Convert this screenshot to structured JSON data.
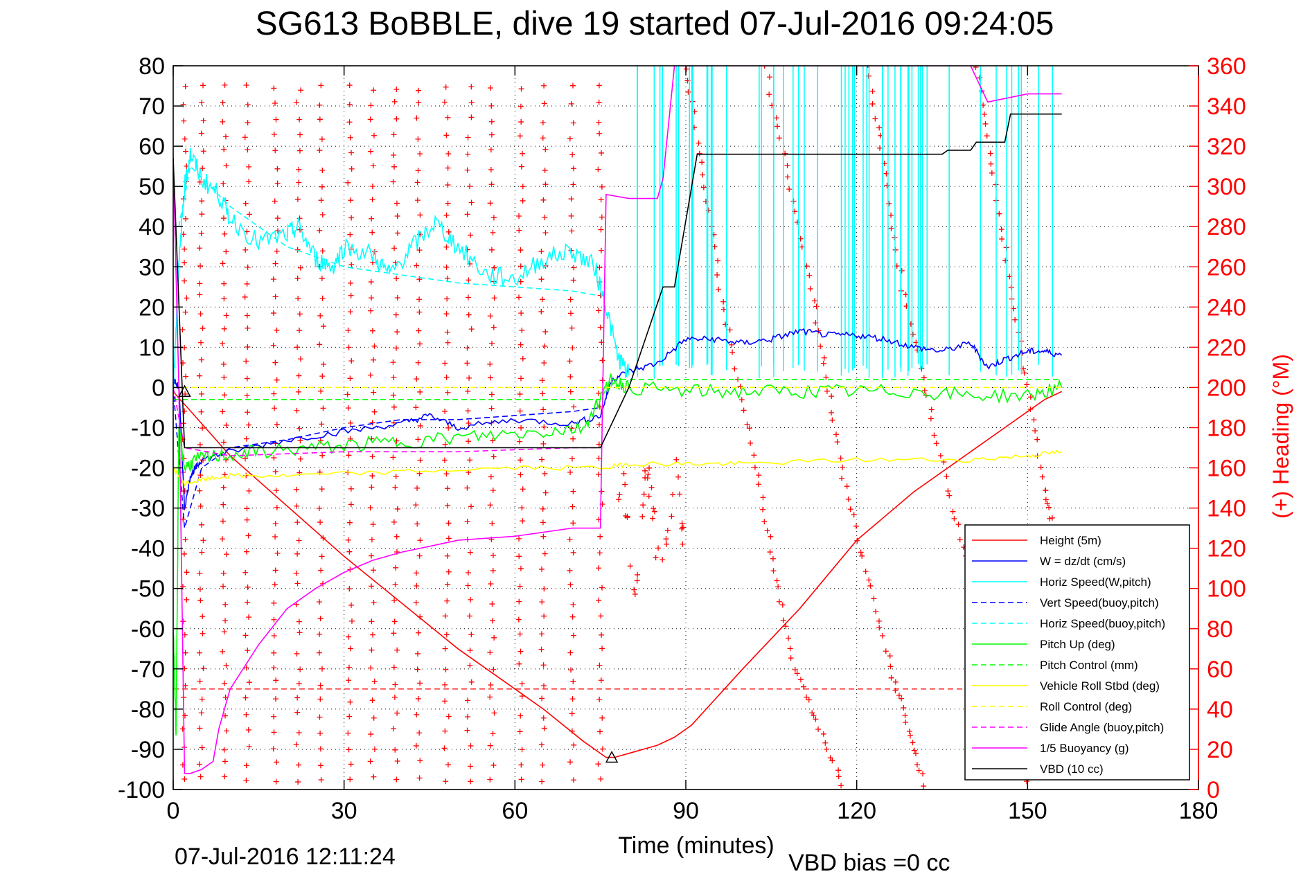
{
  "chart_data": {
    "type": "line",
    "title": "SG613 BoBBLE, dive 19 started 07-Jul-2016 09:24:05",
    "xlabel": "Time (minutes)",
    "ylabel_right": "(+) Heading (°M)",
    "footer_left": "07-Jul-2016 12:11:24",
    "footer_right": "VBD bias =0 cc",
    "xlim": [
      0,
      180
    ],
    "ylim": [
      -100,
      80
    ],
    "y2lim": [
      0,
      360
    ],
    "xticks": [
      "0",
      "30",
      "60",
      "90",
      "120",
      "150",
      "180"
    ],
    "yticks": [
      "80",
      "70",
      "60",
      "50",
      "40",
      "30",
      "20",
      "10",
      "0",
      "-10",
      "-20",
      "-30",
      "-40",
      "-50",
      "-60",
      "-70",
      "-80",
      "-90",
      "-100"
    ],
    "y2ticks": [
      "360",
      "340",
      "320",
      "300",
      "280",
      "260",
      "240",
      "220",
      "200",
      "180",
      "160",
      "140",
      "120",
      "100",
      "80",
      "60",
      "40",
      "20",
      "0"
    ],
    "grid": true,
    "legend_position": "lower-right",
    "colors": {
      "red": "#ff0000",
      "blue": "#0000ff",
      "cyan": "#00ffff",
      "green": "#00ff00",
      "yellow": "#ffff00",
      "magenta": "#ff00ff",
      "black": "#000000"
    },
    "series": [
      {
        "name": "Height (5m)",
        "color": "#ff0000",
        "dash": "solid",
        "x": [
          0,
          1.2,
          2.5,
          10,
          30,
          50,
          65,
          72,
          76,
          77.5,
          80,
          85,
          88,
          91,
          100,
          110,
          120,
          130,
          140,
          146,
          150,
          153,
          156
        ],
        "y": [
          -1,
          -3,
          -5,
          -17,
          -42,
          -65,
          -80,
          -88,
          -92,
          -92,
          -91,
          -89,
          -87,
          -84,
          -70,
          -55,
          -38,
          -26,
          -16,
          -10,
          -6,
          -3,
          -1
        ]
      },
      {
        "name": "W = dz/dt (cm/s)",
        "color": "#0000ff",
        "dash": "solid",
        "x": [
          0,
          1,
          2,
          3,
          4,
          5,
          10,
          20,
          30,
          40,
          45,
          50,
          60,
          70,
          75,
          77,
          80,
          85,
          90,
          95,
          100,
          105,
          110,
          115,
          120,
          125,
          130,
          135,
          140,
          143,
          146,
          150,
          153,
          156
        ],
        "y": [
          2,
          0,
          -30,
          -22,
          -20,
          -18,
          -16,
          -13,
          -11,
          -9,
          -7,
          -10,
          -8,
          -9,
          -7,
          2,
          4,
          6,
          12,
          12,
          11,
          12,
          14,
          13,
          13,
          12,
          10,
          9,
          11,
          5,
          7,
          9,
          9,
          8
        ]
      },
      {
        "name": "Horiz Speed(W,pitch)",
        "color": "#00ffff",
        "dash": "solid",
        "x": [
          0,
          1,
          2,
          3,
          5,
          8,
          10,
          15,
          20,
          22,
          25,
          28,
          30,
          35,
          38,
          42,
          46,
          50,
          55,
          60,
          65,
          70,
          74,
          76,
          78,
          80
        ],
        "y": [
          0,
          30,
          50,
          58,
          52,
          48,
          42,
          36,
          38,
          40,
          32,
          30,
          35,
          33,
          28,
          35,
          41,
          35,
          28,
          27,
          32,
          34,
          30,
          20,
          8,
          3
        ]
      },
      {
        "name": "Vert Speed(buoy,pitch)",
        "color": "#0000ff",
        "dash": "dashed",
        "x": [
          0,
          2,
          5,
          10,
          20,
          30,
          40,
          50,
          60,
          70,
          75
        ],
        "y": [
          0,
          -35,
          -20,
          -15,
          -13,
          -10,
          -8,
          -8,
          -7,
          -6,
          -5
        ]
      },
      {
        "name": "Horiz Speed(buoy,pitch)",
        "color": "#00ffff",
        "dash": "dashed",
        "x": [
          1,
          3,
          10,
          20,
          30,
          40,
          50,
          60,
          70,
          74
        ],
        "y": [
          40,
          55,
          45,
          35,
          30,
          28,
          26,
          25,
          24,
          23
        ]
      },
      {
        "name": "Pitch Up (deg)",
        "color": "#00ff00",
        "dash": "solid",
        "x": [
          0,
          0.5,
          1,
          2,
          4,
          8,
          15,
          25,
          35,
          45,
          55,
          65,
          72,
          76,
          77,
          80,
          90,
          100,
          110,
          120,
          130,
          140,
          150,
          156
        ],
        "y": [
          -60,
          -85,
          -10,
          -20,
          -18,
          -17,
          -16,
          -15,
          -14,
          -13,
          -12,
          -11,
          -10,
          0,
          2,
          0,
          -1,
          -1,
          -1,
          -1,
          -1,
          -2,
          -2,
          0
        ]
      },
      {
        "name": "Pitch Control (mm)",
        "color": "#00ff00",
        "dash": "dashed",
        "x": [
          0,
          2,
          75,
          77,
          156
        ],
        "y": [
          -3,
          -3,
          -3,
          2,
          2
        ]
      },
      {
        "name": "Vehicle Roll Stbd (deg)",
        "color": "#ffff00",
        "dash": "solid",
        "x": [
          0,
          2,
          5,
          10,
          20,
          40,
          60,
          76,
          80,
          90,
          100,
          120,
          140,
          150,
          156
        ],
        "y": [
          -20,
          -24,
          -23,
          -22,
          -22,
          -21,
          -20,
          -20,
          -19,
          -19,
          -19,
          -18,
          -18,
          -17,
          -16
        ]
      },
      {
        "name": "Roll Control (deg)",
        "color": "#ffff00",
        "dash": "dashed",
        "x": [
          0,
          156
        ],
        "y": [
          0,
          0
        ]
      },
      {
        "name": "Glide Angle (buoy,pitch)",
        "color": "#ff00ff",
        "dash": "dashed",
        "x": [
          0,
          2,
          10,
          30,
          50,
          70,
          75
        ],
        "y": [
          0,
          -15,
          -17,
          -16,
          -16,
          -15,
          -15
        ]
      },
      {
        "name": "1/5 Buoyancy (g)",
        "color": "#ff00ff",
        "dash": "solid",
        "x": [
          0,
          1,
          2,
          3,
          5,
          7,
          8,
          10,
          15,
          20,
          25,
          30,
          35,
          40,
          50,
          60,
          70,
          75,
          76,
          80,
          85,
          86,
          88,
          90,
          92,
          140,
          143,
          150,
          156
        ],
        "y": [
          57,
          0,
          -96,
          -96,
          -95,
          -93,
          -85,
          -75,
          -64,
          -55,
          -50,
          -46,
          -43,
          -41,
          -38,
          -37,
          -35,
          -35,
          48,
          47,
          47,
          52,
          80,
          80,
          80,
          80,
          71,
          73,
          73
        ]
      },
      {
        "name": "VBD (10 cc)",
        "color": "#000000",
        "dash": "solid",
        "x": [
          0,
          2,
          75,
          80,
          86,
          88,
          92,
          135,
          136,
          140,
          141,
          146,
          147,
          156
        ],
        "y": [
          57,
          -15,
          -15,
          0,
          25,
          25,
          58,
          58,
          59,
          59,
          61,
          61,
          68,
          68
        ]
      }
    ],
    "horizontal_reference": {
      "color": "#ff0000",
      "dash": "dashed",
      "y": -75,
      "x": [
        0,
        156
      ]
    },
    "heading": {
      "axis": "right",
      "marker": "+",
      "color": "#ff0000",
      "descent_columns_minutes": [
        2,
        5,
        9,
        13,
        18,
        22,
        26,
        31,
        35,
        39,
        43,
        48,
        52,
        56,
        61,
        65,
        70,
        75
      ],
      "descent_range_deg": [
        5,
        355
      ],
      "ascent_tracks": [
        {
          "x": [
            90,
            96,
            103,
            109,
            118
          ],
          "y": [
            360,
            250,
            150,
            60,
            0
          ]
        },
        {
          "x": [
            104,
            112,
            118,
            126,
            132
          ],
          "y": [
            360,
            250,
            150,
            60,
            0
          ]
        },
        {
          "x": [
            122,
            128,
            136,
            144,
            150
          ],
          "y": [
            360,
            250,
            150,
            60,
            0
          ]
        },
        {
          "x": [
            141,
            147,
            153,
            157
          ],
          "y": [
            360,
            250,
            150,
            100
          ]
        }
      ]
    },
    "markers": [
      {
        "shape": "triangle",
        "color": "#000000",
        "x": 2,
        "y": -1
      },
      {
        "shape": "triangle",
        "color": "#000000",
        "x": 77,
        "y": -92
      }
    ]
  }
}
